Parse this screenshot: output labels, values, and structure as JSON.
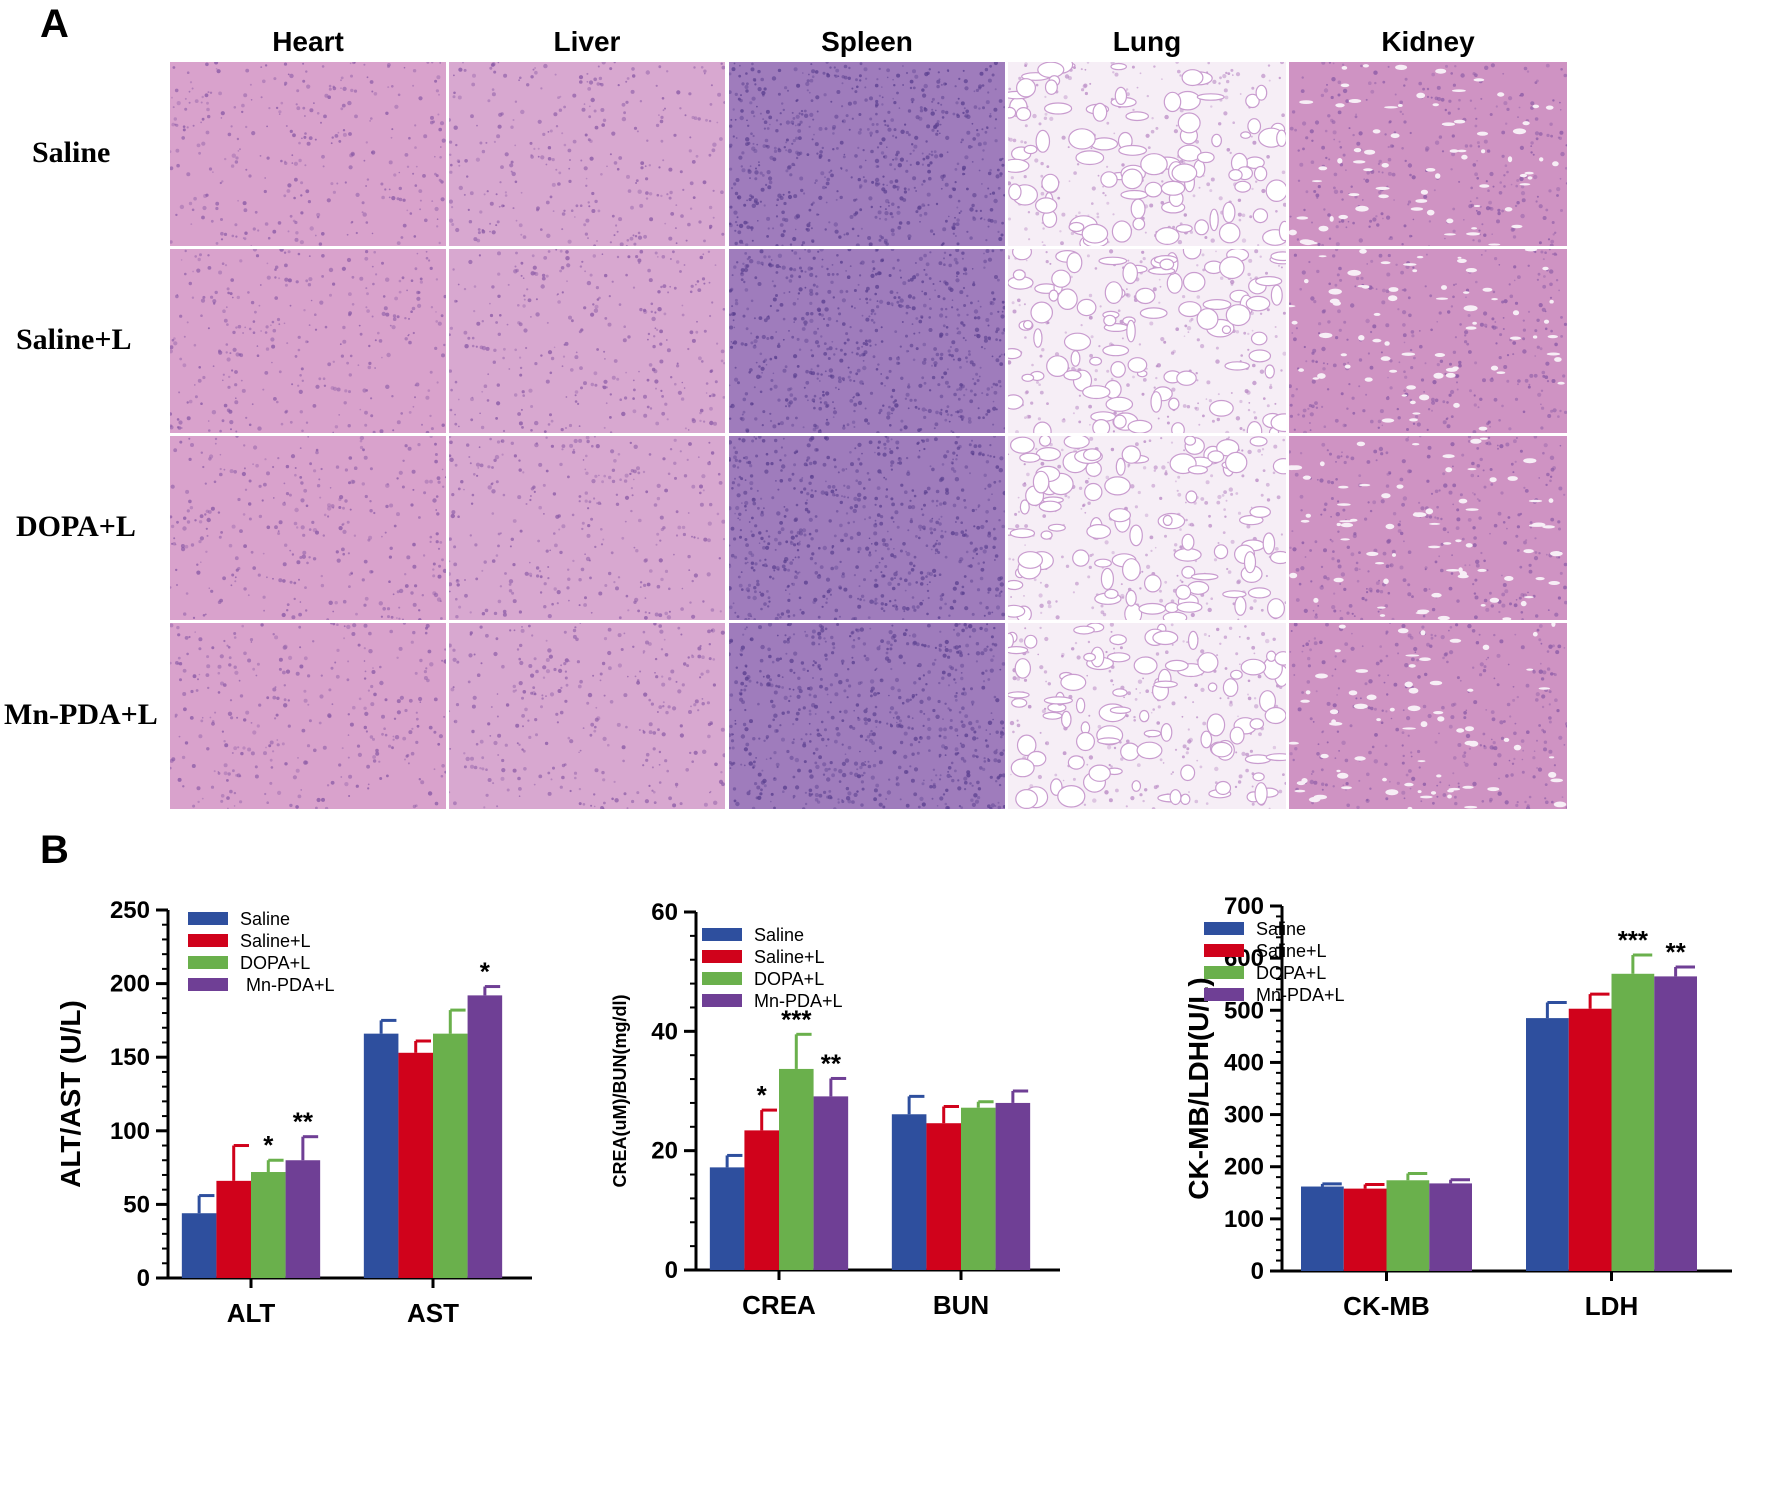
{
  "panelA": {
    "label": "A",
    "columns": [
      "Heart",
      "Liver",
      "Spleen",
      "Lung",
      "Kidney"
    ],
    "rows": [
      "Saline",
      "Saline+L",
      "DOPA+L",
      "Mn-PDA+L"
    ],
    "tissue_colors": {
      "Heart": "#d9a2cc",
      "Liver": "#d8a8d0",
      "Spleen": "#9f7cbc",
      "Lung": "#f6eef6",
      "Kidney": "#cf93c3"
    }
  },
  "panelB": {
    "label": "B"
  },
  "legend": [
    "Saline",
    "Saline+L",
    "DOPA+L",
    "Mn-PDA+L"
  ],
  "colors": [
    "#2e4f9e",
    "#d0021b",
    "#6ab04c",
    "#6f3f95"
  ],
  "chart_data": [
    {
      "type": "bar",
      "categories": [
        "ALT",
        "AST"
      ],
      "ylabel": "ALT/AST (U/L)",
      "ylim": [
        0,
        250
      ],
      "yticks": [
        0,
        50,
        100,
        150,
        200,
        250
      ],
      "series": [
        {
          "name": "Saline",
          "values": [
            44,
            166
          ],
          "errors": [
            12,
            9
          ]
        },
        {
          "name": "Saline+L",
          "values": [
            66,
            153
          ],
          "errors": [
            24,
            8
          ]
        },
        {
          "name": "DOPA+L",
          "values": [
            72,
            166
          ],
          "errors": [
            8,
            16
          ]
        },
        {
          "name": "Mn-PDA+L",
          "values": [
            80,
            192
          ],
          "errors": [
            16,
            6
          ]
        }
      ],
      "annotations": [
        {
          "category": 0,
          "series": 2,
          "text": "*"
        },
        {
          "category": 0,
          "series": 3,
          "text": "**"
        },
        {
          "category": 1,
          "series": 3,
          "text": "*"
        }
      ]
    },
    {
      "type": "bar",
      "categories": [
        "CREA",
        "BUN"
      ],
      "ylabel": "CREA(uM)/BUN(mg/dl)",
      "ylim": [
        0,
        60
      ],
      "yticks": [
        0,
        20,
        40,
        60
      ],
      "series": [
        {
          "name": "Saline",
          "values": [
            17.2,
            26.1
          ],
          "errors": [
            2.0,
            3.0
          ]
        },
        {
          "name": "Saline+L",
          "values": [
            23.4,
            24.6
          ],
          "errors": [
            3.4,
            2.8
          ]
        },
        {
          "name": "DOPA+L",
          "values": [
            33.7,
            27.2
          ],
          "errors": [
            5.8,
            1.0
          ]
        },
        {
          "name": "Mn-PDA+L",
          "values": [
            29.1,
            28.0
          ],
          "errors": [
            3.0,
            2.0
          ]
        }
      ],
      "annotations": [
        {
          "category": 0,
          "series": 1,
          "text": "*"
        },
        {
          "category": 0,
          "series": 2,
          "text": "***"
        },
        {
          "category": 0,
          "series": 3,
          "text": "**"
        }
      ]
    },
    {
      "type": "bar",
      "categories": [
        "CK-MB",
        "LDH"
      ],
      "ylabel": "CK-MB/LDH(U/L)",
      "ylim": [
        0,
        700
      ],
      "yticks": [
        0,
        100,
        200,
        300,
        400,
        500,
        600,
        700
      ],
      "series": [
        {
          "name": "Saline",
          "values": [
            162,
            485
          ],
          "errors": [
            5,
            30
          ]
        },
        {
          "name": "Saline+L",
          "values": [
            158,
            503
          ],
          "errors": [
            8,
            28
          ]
        },
        {
          "name": "DOPA+L",
          "values": [
            174,
            570
          ],
          "errors": [
            13,
            36
          ]
        },
        {
          "name": "Mn-PDA+L",
          "values": [
            168,
            565
          ],
          "errors": [
            7,
            18
          ]
        }
      ],
      "annotations": [
        {
          "category": 1,
          "series": 2,
          "text": "***"
        },
        {
          "category": 1,
          "series": 3,
          "text": "**"
        }
      ]
    }
  ]
}
